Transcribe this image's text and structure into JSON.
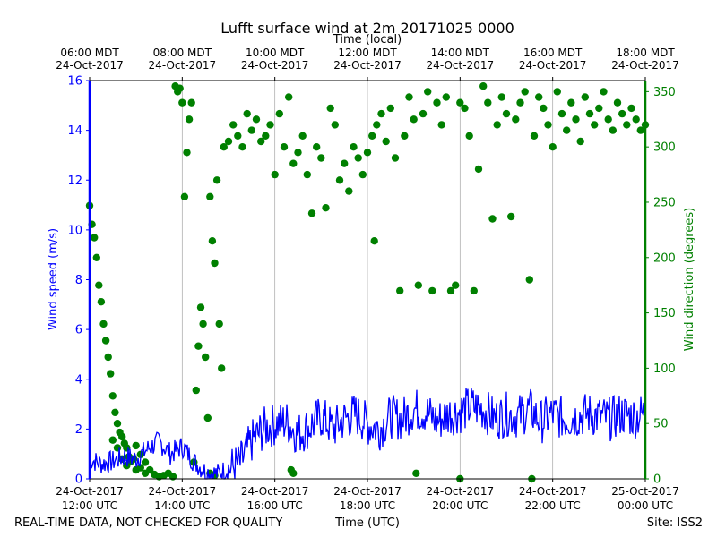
{
  "chart_data": {
    "type": "line+scatter",
    "title": "Lufft surface wind at 2m 20171025 0000",
    "top_axis_label": "Time (local)",
    "xlabel": "Time (UTC)",
    "footer_left": "REAL-TIME DATA, NOT CHECKED FOR QUALITY",
    "footer_right": "Site: ISS2",
    "x_range_hours_utc": [
      12,
      24
    ],
    "bottom_ticks": [
      {
        "h": 12,
        "l1": "24-Oct-2017",
        "l2": "12:00 UTC"
      },
      {
        "h": 14,
        "l1": "24-Oct-2017",
        "l2": "14:00 UTC"
      },
      {
        "h": 16,
        "l1": "24-Oct-2017",
        "l2": "16:00 UTC"
      },
      {
        "h": 18,
        "l1": "24-Oct-2017",
        "l2": "18:00 UTC"
      },
      {
        "h": 20,
        "l1": "24-Oct-2017",
        "l2": "20:00 UTC"
      },
      {
        "h": 22,
        "l1": "24-Oct-2017",
        "l2": "22:00 UTC"
      },
      {
        "h": 24,
        "l1": "25-Oct-2017",
        "l2": "00:00 UTC"
      }
    ],
    "top_ticks": [
      {
        "h": 12,
        "l1": "06:00 MDT",
        "l2": "24-Oct-2017"
      },
      {
        "h": 14,
        "l1": "08:00 MDT",
        "l2": "24-Oct-2017"
      },
      {
        "h": 16,
        "l1": "10:00 MDT",
        "l2": "24-Oct-2017"
      },
      {
        "h": 18,
        "l1": "12:00 MDT",
        "l2": "24-Oct-2017"
      },
      {
        "h": 20,
        "l1": "14:00 MDT",
        "l2": "24-Oct-2017"
      },
      {
        "h": 22,
        "l1": "16:00 MDT",
        "l2": "24-Oct-2017"
      },
      {
        "h": 24,
        "l1": "18:00 MDT",
        "l2": "24-Oct-2017"
      }
    ],
    "left_axis": {
      "label": "Wind speed (m/s)",
      "ylim": [
        0,
        16
      ],
      "ticks": [
        0,
        2,
        4,
        6,
        8,
        10,
        12,
        14,
        16
      ]
    },
    "right_axis": {
      "label": "Wind direction (degrees)",
      "ylim": [
        0,
        360
      ],
      "ticks": [
        0,
        50,
        100,
        150,
        200,
        250,
        300,
        350
      ]
    },
    "colors": {
      "speed": "#0000ff",
      "direction": "#008000",
      "grid": "#b0b0b0"
    },
    "speed_series": {
      "name": "Wind speed",
      "hours": [
        12.0,
        12.25,
        12.5,
        12.75,
        13.0,
        13.25,
        13.5,
        13.75,
        14.0,
        14.25,
        14.5,
        14.75,
        15.0,
        15.25,
        15.5,
        15.75,
        16.0,
        16.25,
        16.5,
        16.75,
        17.0,
        17.25,
        17.5,
        17.75,
        18.0,
        18.25,
        18.5,
        18.75,
        19.0,
        19.25,
        19.5,
        19.75,
        20.0,
        20.25,
        20.5,
        20.75,
        21.0,
        21.25,
        21.5,
        21.75,
        22.0,
        22.25,
        22.5,
        22.75,
        23.0,
        23.25,
        23.5,
        23.75,
        24.0
      ],
      "values": [
        0.8,
        0.6,
        0.7,
        0.9,
        0.8,
        1.2,
        1.5,
        1.0,
        1.3,
        0.7,
        0.3,
        0.2,
        0.4,
        0.6,
        1.5,
        2.0,
        2.2,
        2.3,
        1.8,
        2.1,
        2.5,
        2.0,
        2.4,
        2.6,
        2.2,
        2.0,
        2.5,
        2.4,
        2.8,
        2.7,
        2.3,
        2.6,
        2.7,
        2.9,
        2.8,
        2.4,
        2.6,
        2.5,
        2.8,
        2.3,
        2.6,
        2.4,
        2.5,
        2.6,
        2.5,
        2.4,
        2.6,
        2.5,
        2.6
      ],
      "noise_amplitude": 0.9
    },
    "direction_series": {
      "name": "Wind direction",
      "points": [
        [
          12.0,
          247
        ],
        [
          12.05,
          230
        ],
        [
          12.1,
          218
        ],
        [
          12.15,
          200
        ],
        [
          12.2,
          175
        ],
        [
          12.25,
          160
        ],
        [
          12.3,
          140
        ],
        [
          12.35,
          125
        ],
        [
          12.4,
          110
        ],
        [
          12.45,
          95
        ],
        [
          12.5,
          75
        ],
        [
          12.55,
          60
        ],
        [
          12.6,
          50
        ],
        [
          12.65,
          42
        ],
        [
          12.7,
          38
        ],
        [
          12.75,
          32
        ],
        [
          12.8,
          28
        ],
        [
          12.85,
          20
        ],
        [
          12.9,
          16
        ],
        [
          12.95,
          18
        ],
        [
          13.0,
          30
        ],
        [
          13.1,
          22
        ],
        [
          13.2,
          15
        ],
        [
          13.3,
          8
        ],
        [
          13.4,
          4
        ],
        [
          13.5,
          2
        ],
        [
          13.6,
          3
        ],
        [
          13.7,
          5
        ],
        [
          13.8,
          2
        ],
        [
          13.85,
          355
        ],
        [
          13.9,
          350
        ],
        [
          13.95,
          353
        ],
        [
          14.0,
          340
        ],
        [
          14.05,
          255
        ],
        [
          14.1,
          295
        ],
        [
          14.15,
          325
        ],
        [
          14.2,
          340
        ],
        [
          14.25,
          15
        ],
        [
          14.3,
          80
        ],
        [
          14.35,
          120
        ],
        [
          14.4,
          155
        ],
        [
          14.45,
          140
        ],
        [
          14.5,
          110
        ],
        [
          14.55,
          55
        ],
        [
          14.6,
          255
        ],
        [
          14.65,
          215
        ],
        [
          14.7,
          195
        ],
        [
          14.75,
          270
        ],
        [
          14.8,
          140
        ],
        [
          14.85,
          100
        ],
        [
          14.9,
          300
        ],
        [
          15.0,
          305
        ],
        [
          15.1,
          320
        ],
        [
          15.2,
          310
        ],
        [
          15.3,
          300
        ],
        [
          15.4,
          330
        ],
        [
          15.5,
          315
        ],
        [
          15.6,
          325
        ],
        [
          15.7,
          305
        ],
        [
          15.8,
          310
        ],
        [
          15.9,
          320
        ],
        [
          16.0,
          275
        ],
        [
          16.1,
          330
        ],
        [
          16.2,
          300
        ],
        [
          16.3,
          345
        ],
        [
          16.4,
          285
        ],
        [
          16.5,
          295
        ],
        [
          16.6,
          310
        ],
        [
          16.7,
          275
        ],
        [
          16.8,
          240
        ],
        [
          16.9,
          300
        ],
        [
          17.0,
          290
        ],
        [
          17.1,
          245
        ],
        [
          17.2,
          335
        ],
        [
          17.3,
          320
        ],
        [
          17.4,
          270
        ],
        [
          17.5,
          285
        ],
        [
          17.6,
          260
        ],
        [
          17.7,
          300
        ],
        [
          17.8,
          290
        ],
        [
          17.9,
          275
        ],
        [
          18.0,
          295
        ],
        [
          18.1,
          310
        ],
        [
          18.15,
          215
        ],
        [
          18.2,
          320
        ],
        [
          18.3,
          330
        ],
        [
          18.4,
          305
        ],
        [
          18.5,
          335
        ],
        [
          18.6,
          290
        ],
        [
          18.7,
          170
        ],
        [
          18.8,
          310
        ],
        [
          18.9,
          345
        ],
        [
          19.0,
          325
        ],
        [
          19.1,
          175
        ],
        [
          19.2,
          330
        ],
        [
          19.3,
          350
        ],
        [
          19.4,
          170
        ],
        [
          19.5,
          340
        ],
        [
          19.6,
          320
        ],
        [
          19.7,
          345
        ],
        [
          19.8,
          170
        ],
        [
          19.9,
          175
        ],
        [
          20.0,
          340
        ],
        [
          20.1,
          335
        ],
        [
          20.2,
          310
        ],
        [
          20.3,
          170
        ],
        [
          20.4,
          280
        ],
        [
          20.5,
          355
        ],
        [
          20.6,
          340
        ],
        [
          20.7,
          235
        ],
        [
          20.8,
          320
        ],
        [
          20.9,
          345
        ],
        [
          21.0,
          330
        ],
        [
          21.1,
          237
        ],
        [
          21.2,
          325
        ],
        [
          21.3,
          340
        ],
        [
          21.4,
          350
        ],
        [
          21.5,
          180
        ],
        [
          21.6,
          310
        ],
        [
          21.7,
          345
        ],
        [
          21.8,
          335
        ],
        [
          21.9,
          320
        ],
        [
          22.0,
          300
        ],
        [
          22.1,
          350
        ],
        [
          22.2,
          330
        ],
        [
          22.3,
          315
        ],
        [
          22.4,
          340
        ],
        [
          22.5,
          325
        ],
        [
          22.6,
          305
        ],
        [
          22.7,
          345
        ],
        [
          22.8,
          330
        ],
        [
          22.9,
          320
        ],
        [
          23.0,
          335
        ],
        [
          23.1,
          350
        ],
        [
          23.2,
          325
        ],
        [
          23.3,
          315
        ],
        [
          23.4,
          340
        ],
        [
          23.5,
          330
        ],
        [
          23.6,
          320
        ],
        [
          23.7,
          335
        ],
        [
          23.8,
          325
        ],
        [
          23.9,
          315
        ],
        [
          24.0,
          320
        ],
        [
          12.5,
          35
        ],
        [
          12.6,
          28
        ],
        [
          12.7,
          18
        ],
        [
          12.8,
          12
        ],
        [
          13.0,
          8
        ],
        [
          13.1,
          10
        ],
        [
          13.2,
          5
        ],
        [
          14.6,
          5
        ],
        [
          14.7,
          3
        ],
        [
          16.35,
          8
        ],
        [
          16.4,
          5
        ],
        [
          19.05,
          5
        ],
        [
          20.0,
          0
        ],
        [
          21.55,
          0
        ]
      ]
    }
  }
}
